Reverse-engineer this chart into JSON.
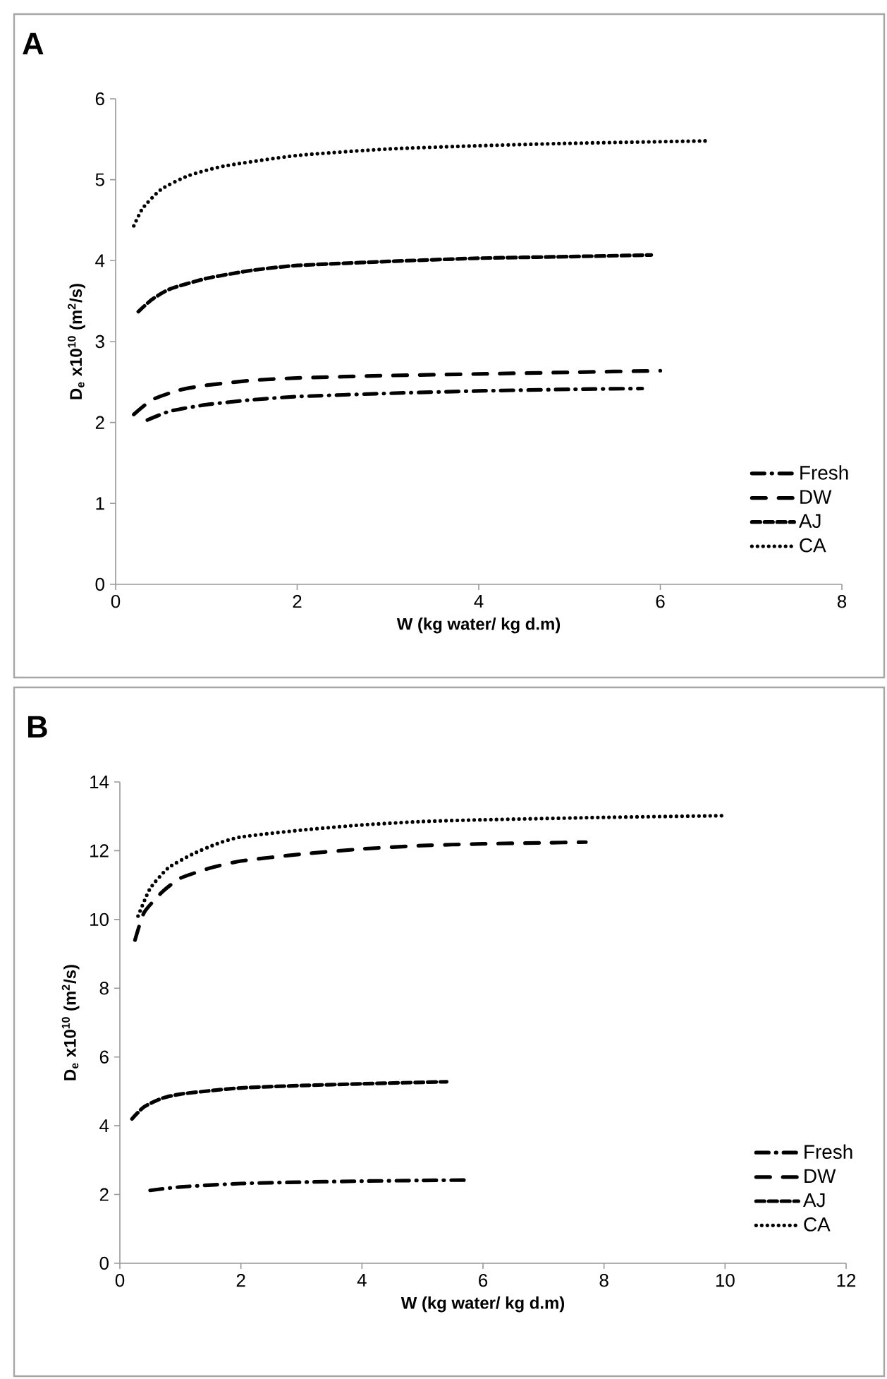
{
  "chart_data": [
    {
      "type": "line",
      "title": "A",
      "xlabel": "W (kg water/ kg d.m)",
      "ylabel": "D$_{e}$ x10$^{10}$ (m$^{2}$/s)",
      "xlim": [
        0,
        8
      ],
      "ylim": [
        0,
        6
      ],
      "xticks": [
        0,
        2,
        4,
        6,
        8
      ],
      "yticks": [
        0,
        1,
        2,
        3,
        4,
        5,
        6
      ],
      "legend": "bottom right",
      "series": [
        {
          "name": "Fresh",
          "color": "#000000",
          "line_style": "dashdot",
          "x": [
            0.35,
            0.6,
            1,
            1.5,
            2,
            3,
            4,
            5,
            5.8
          ],
          "values": [
            2.03,
            2.14,
            2.22,
            2.28,
            2.32,
            2.36,
            2.39,
            2.41,
            2.42
          ]
        },
        {
          "name": "DW",
          "color": "#000000",
          "line_style": "longdash",
          "x": [
            0.2,
            0.4,
            0.7,
            1,
            1.5,
            2,
            3,
            4,
            5,
            6
          ],
          "values": [
            2.1,
            2.28,
            2.4,
            2.46,
            2.52,
            2.55,
            2.58,
            2.6,
            2.62,
            2.64
          ]
        },
        {
          "name": "AJ",
          "color": "#000000",
          "line_style": "dashed",
          "x": [
            0.25,
            0.4,
            0.6,
            1,
            1.5,
            2,
            3,
            4,
            5,
            5.9
          ],
          "values": [
            3.37,
            3.52,
            3.65,
            3.78,
            3.88,
            3.94,
            3.99,
            4.03,
            4.05,
            4.07
          ]
        },
        {
          "name": "CA",
          "color": "#000000",
          "line_style": "dotted",
          "x": [
            0.2,
            0.3,
            0.5,
            0.8,
            1.2,
            2,
            3,
            4,
            5,
            6.5
          ],
          "values": [
            4.43,
            4.65,
            4.88,
            5.05,
            5.17,
            5.3,
            5.38,
            5.42,
            5.45,
            5.48
          ]
        }
      ]
    },
    {
      "type": "line",
      "title": "B",
      "xlabel": "W (kg water/ kg d.m)",
      "ylabel": "D$_{e}$ x10$^{10}$ (m$^{2}$/s)",
      "xlim": [
        0,
        12
      ],
      "ylim": [
        0,
        14
      ],
      "xticks": [
        0,
        2,
        4,
        6,
        8,
        10,
        12
      ],
      "yticks": [
        0,
        2,
        4,
        6,
        8,
        10,
        12,
        14
      ],
      "legend": "bottom right",
      "series": [
        {
          "name": "Fresh",
          "color": "#000000",
          "line_style": "dashdot",
          "x": [
            0.5,
            1,
            2,
            3,
            4,
            5,
            5.7
          ],
          "values": [
            2.12,
            2.22,
            2.32,
            2.36,
            2.39,
            2.41,
            2.42
          ]
        },
        {
          "name": "DW",
          "color": "#000000",
          "line_style": "longdash",
          "x": [
            0.25,
            0.4,
            0.7,
            1,
            1.5,
            2,
            3,
            4,
            5,
            6,
            7,
            7.7
          ],
          "values": [
            9.4,
            10.2,
            10.8,
            11.2,
            11.5,
            11.7,
            11.9,
            12.05,
            12.15,
            12.2,
            12.23,
            12.25
          ]
        },
        {
          "name": "AJ",
          "color": "#000000",
          "line_style": "dashed",
          "x": [
            0.2,
            0.4,
            0.7,
            1,
            1.5,
            2,
            3,
            4,
            5.4
          ],
          "values": [
            4.2,
            4.55,
            4.8,
            4.92,
            5.02,
            5.1,
            5.17,
            5.22,
            5.28
          ]
        },
        {
          "name": "CA",
          "color": "#000000",
          "line_style": "dotted",
          "x": [
            0.3,
            0.5,
            0.8,
            1.2,
            1.6,
            2,
            3,
            4,
            5,
            6,
            8,
            10
          ],
          "values": [
            10.1,
            10.9,
            11.5,
            11.9,
            12.2,
            12.4,
            12.6,
            12.75,
            12.85,
            12.9,
            12.97,
            13.02
          ]
        }
      ]
    }
  ]
}
